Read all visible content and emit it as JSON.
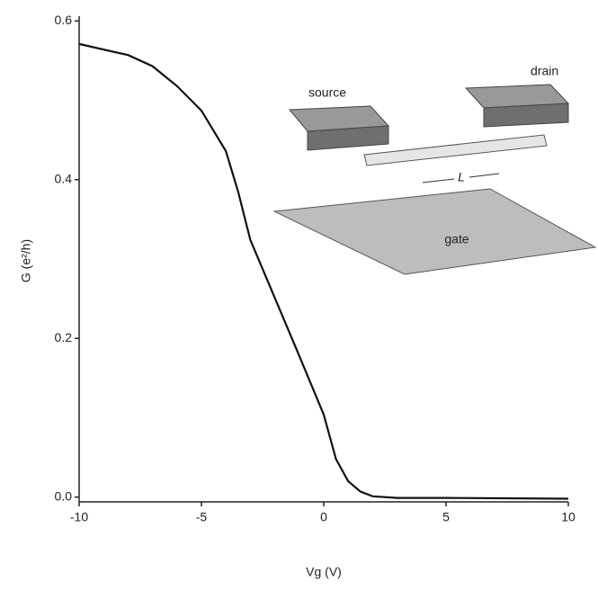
{
  "chart_data": {
    "type": "line",
    "x_label": "Vg (V)",
    "y_label": "G (e²/h)",
    "x": [
      -10,
      -8,
      -7,
      -6,
      -5,
      -4,
      -3.5,
      -3,
      -2,
      -1,
      0,
      0.5,
      1,
      1.5,
      2,
      3,
      5,
      10
    ],
    "series": [
      {
        "color": "#111111",
        "values": [
          0.571,
          0.557,
          0.543,
          0.518,
          0.487,
          0.436,
          0.385,
          0.324,
          0.251,
          0.178,
          0.104,
          0.048,
          0.02,
          0.007,
          0.001,
          -0.001,
          -0.001,
          -0.002
        ]
      }
    ],
    "xlim": [
      -10,
      10
    ],
    "xticks": [
      -10,
      -5,
      0,
      5,
      10
    ],
    "ylim": [
      -0.006,
      0.606
    ],
    "yticks": [
      {
        "value": 0,
        "label": "0.0"
      },
      0.2,
      0.4,
      0.6
    ],
    "annotations": [
      "source",
      "drain",
      "L",
      "gate"
    ]
  }
}
